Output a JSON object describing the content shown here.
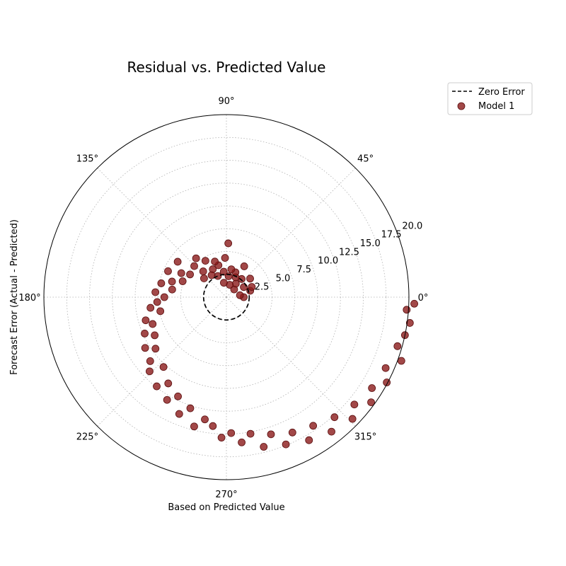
{
  "chart_data": {
    "type": "scatter",
    "projection": "polar",
    "title": "Residual vs. Predicted Value",
    "xlabel": "Based on Predicted Value",
    "ylabel": "Forecast Error (Actual - Predicted)",
    "theta_tick_labels": [
      "0°",
      "45°",
      "90°",
      "135°",
      "180°",
      "225°",
      "270°",
      "315°"
    ],
    "theta_ticks_deg": [
      0,
      45,
      90,
      135,
      180,
      225,
      270,
      315
    ],
    "r_tick_labels": [
      "2.5",
      "5.0",
      "7.5",
      "10.0",
      "12.5",
      "15.0",
      "17.5",
      "20.0"
    ],
    "r_ticks": [
      2.5,
      5.0,
      7.5,
      10.0,
      12.5,
      15.0,
      17.5,
      20.0
    ],
    "r_range": [
      0,
      20
    ],
    "grid": true,
    "legend": {
      "placement": "upper-right-outside",
      "entries": [
        {
          "label": "Zero Error",
          "style": "dashed-line",
          "color": "#000000"
        },
        {
          "label": "Model 1",
          "style": "marker",
          "color": "#8b1a1a"
        }
      ]
    },
    "reference_circle": {
      "name": "Zero Error",
      "r": 2.5
    },
    "series": [
      {
        "name": "Model 1",
        "color": "#8b1a1a",
        "points": [
          {
            "theta": 0,
            "r": 1.9
          },
          {
            "theta": 8,
            "r": 1.5
          },
          {
            "theta": 15,
            "r": 2.7
          },
          {
            "theta": 22,
            "r": 3.0
          },
          {
            "theta": 30,
            "r": 2.2
          },
          {
            "theta": 38,
            "r": 3.3
          },
          {
            "theta": 45,
            "r": 1.2
          },
          {
            "theta": 50,
            "r": 2.6
          },
          {
            "theta": 55,
            "r": 1.8
          },
          {
            "theta": 60,
            "r": 3.9
          },
          {
            "theta": 65,
            "r": 2.4
          },
          {
            "theta": 70,
            "r": 2.9
          },
          {
            "theta": 75,
            "r": 1.4
          },
          {
            "theta": 80,
            "r": 3.1
          },
          {
            "theta": 84,
            "r": 2.3
          },
          {
            "theta": 88,
            "r": 5.9
          },
          {
            "theta": 92,
            "r": 4.3
          },
          {
            "theta": 96,
            "r": 2.8
          },
          {
            "theta": 100,
            "r": 1.6
          },
          {
            "theta": 104,
            "r": 3.6
          },
          {
            "theta": 108,
            "r": 4.1
          },
          {
            "theta": 112,
            "r": 2.5
          },
          {
            "theta": 116,
            "r": 3.4
          },
          {
            "theta": 120,
            "r": 4.6
          },
          {
            "theta": 124,
            "r": 2.9
          },
          {
            "theta": 128,
            "r": 5.4
          },
          {
            "theta": 132,
            "r": 3.8
          },
          {
            "theta": 136,
            "r": 4.9
          },
          {
            "theta": 140,
            "r": 3.2
          },
          {
            "theta": 144,
            "r": 6.6
          },
          {
            "theta": 148,
            "r": 4.7
          },
          {
            "theta": 152,
            "r": 5.6
          },
          {
            "theta": 156,
            "r": 7.0
          },
          {
            "theta": 160,
            "r": 5.1
          },
          {
            "theta": 164,
            "r": 6.2
          },
          {
            "theta": 168,
            "r": 7.3
          },
          {
            "theta": 172,
            "r": 6.0
          },
          {
            "theta": 176,
            "r": 7.8
          },
          {
            "theta": 180,
            "r": 6.8
          },
          {
            "theta": 184,
            "r": 7.6
          },
          {
            "theta": 188,
            "r": 8.4
          },
          {
            "theta": 192,
            "r": 7.4
          },
          {
            "theta": 196,
            "r": 9.2
          },
          {
            "theta": 200,
            "r": 8.6
          },
          {
            "theta": 204,
            "r": 9.8
          },
          {
            "theta": 208,
            "r": 8.9
          },
          {
            "theta": 212,
            "r": 10.5
          },
          {
            "theta": 216,
            "r": 9.6
          },
          {
            "theta": 220,
            "r": 10.9
          },
          {
            "theta": 224,
            "r": 11.7
          },
          {
            "theta": 228,
            "r": 10.3
          },
          {
            "theta": 232,
            "r": 12.4
          },
          {
            "theta": 236,
            "r": 11.4
          },
          {
            "theta": 240,
            "r": 13.0
          },
          {
            "theta": 244,
            "r": 12.1
          },
          {
            "theta": 248,
            "r": 13.8
          },
          {
            "theta": 252,
            "r": 12.8
          },
          {
            "theta": 256,
            "r": 14.6
          },
          {
            "theta": 260,
            "r": 13.6
          },
          {
            "theta": 264,
            "r": 14.2
          },
          {
            "theta": 268,
            "r": 15.4
          },
          {
            "theta": 272,
            "r": 14.9
          },
          {
            "theta": 276,
            "r": 16.0
          },
          {
            "theta": 280,
            "r": 15.2
          },
          {
            "theta": 284,
            "r": 16.9
          },
          {
            "theta": 288,
            "r": 15.8
          },
          {
            "theta": 292,
            "r": 17.4
          },
          {
            "theta": 296,
            "r": 16.5
          },
          {
            "theta": 300,
            "r": 18.1
          },
          {
            "theta": 304,
            "r": 17.0
          },
          {
            "theta": 308,
            "r": 18.7
          },
          {
            "theta": 312,
            "r": 17.7
          },
          {
            "theta": 316,
            "r": 19.2
          },
          {
            "theta": 320,
            "r": 18.3
          },
          {
            "theta": 324,
            "r": 19.6
          },
          {
            "theta": 328,
            "r": 18.8
          },
          {
            "theta": 332,
            "r": 19.9
          },
          {
            "theta": 336,
            "r": 19.1
          },
          {
            "theta": 340,
            "r": 20.4
          },
          {
            "theta": 344,
            "r": 19.5
          },
          {
            "theta": 348,
            "r": 20.0
          },
          {
            "theta": 352,
            "r": 20.3
          },
          {
            "theta": 356,
            "r": 19.8
          },
          {
            "theta": 358,
            "r": 20.6
          }
        ]
      }
    ]
  }
}
